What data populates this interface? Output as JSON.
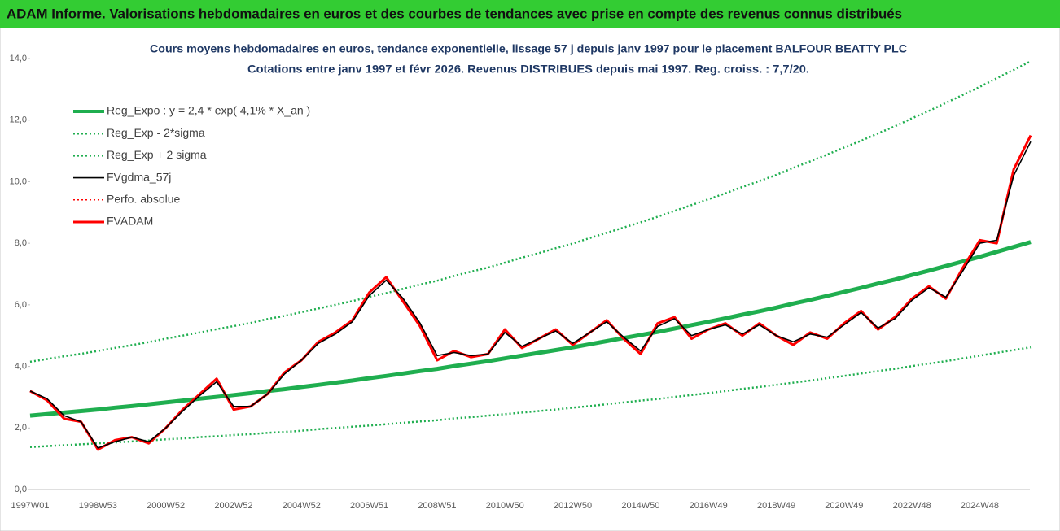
{
  "chart_data": {
    "type": "line",
    "header": "ADAM Informe. Valorisations hebdomadaires en euros et des courbes de tendances avec prise en compte des revenus connus distribués",
    "title": "Cours moyens hebdomadaires en euros, tendance exponentielle, lissage 57 j depuis janv 1997 pour le placement BALFOUR BEATTY PLC",
    "subtitle": "Cotations entre janv 1997 et févr 2026. Revenus DISTRIBUES depuis mai 1997. Reg. croiss. : 7,7/20.",
    "categories": [
      "1997W01",
      null,
      null,
      null,
      "1998W53",
      null,
      null,
      null,
      "2000W52",
      null,
      null,
      null,
      "2002W52",
      null,
      null,
      null,
      "2004W52",
      null,
      null,
      null,
      "2006W51",
      null,
      null,
      null,
      "2008W51",
      null,
      null,
      null,
      "2010W50",
      null,
      null,
      null,
      "2012W50",
      null,
      null,
      null,
      "2014W50",
      null,
      null,
      null,
      "2016W49",
      null,
      null,
      null,
      "2018W49",
      null,
      null,
      null,
      "2020W49",
      null,
      null,
      null,
      "2022W48",
      null,
      null,
      null,
      "2024W48",
      null,
      null,
      null
    ],
    "ylim": [
      0,
      14
    ],
    "yticks": [
      {
        "value": 0,
        "label": "0,0"
      },
      {
        "value": 2,
        "label": "2,0"
      },
      {
        "value": 4,
        "label": "4,0"
      },
      {
        "value": 6,
        "label": "6,0"
      },
      {
        "value": 8,
        "label": "8,0"
      },
      {
        "value": 10,
        "label": "10,0"
      },
      {
        "value": 12,
        "label": "12,0"
      },
      {
        "value": 14,
        "label": "14,0"
      }
    ],
    "grid": false,
    "legend": "upper left",
    "series": [
      {
        "name": "Reg_Expo : y = 2,4 * exp( 4,1% *  X_an )",
        "color": "#1fae4f",
        "line_style": "solid",
        "line_width": 5,
        "values": [
          2.4,
          2.45,
          2.5,
          2.55,
          2.6,
          2.66,
          2.71,
          2.77,
          2.83,
          2.89,
          2.95,
          3.01,
          3.07,
          3.13,
          3.2,
          3.26,
          3.33,
          3.4,
          3.47,
          3.54,
          3.62,
          3.69,
          3.77,
          3.85,
          3.92,
          4.01,
          4.09,
          4.17,
          4.26,
          4.35,
          4.44,
          4.53,
          4.62,
          4.72,
          4.82,
          4.92,
          5.02,
          5.12,
          5.23,
          5.34,
          5.45,
          5.56,
          5.68,
          5.79,
          5.91,
          6.04,
          6.16,
          6.29,
          6.42,
          6.55,
          6.69,
          6.82,
          6.97,
          7.11,
          7.26,
          7.41,
          7.56,
          7.72,
          7.88,
          8.04
        ]
      },
      {
        "name": "Reg_Exp - 2*sigma",
        "color": "#1fae4f",
        "line_style": "dotted",
        "line_width": 2.5,
        "values": [
          1.38,
          1.41,
          1.44,
          1.47,
          1.5,
          1.53,
          1.56,
          1.59,
          1.63,
          1.66,
          1.7,
          1.73,
          1.77,
          1.8,
          1.84,
          1.87,
          1.91,
          1.96,
          2.0,
          2.04,
          2.08,
          2.12,
          2.17,
          2.21,
          2.25,
          2.31,
          2.35,
          2.4,
          2.45,
          2.5,
          2.55,
          2.6,
          2.66,
          2.71,
          2.77,
          2.83,
          2.89,
          2.94,
          3.01,
          3.07,
          3.13,
          3.2,
          3.27,
          3.33,
          3.4,
          3.47,
          3.54,
          3.62,
          3.69,
          3.77,
          3.85,
          3.92,
          4.01,
          4.09,
          4.17,
          4.26,
          4.35,
          4.44,
          4.53,
          4.62
        ]
      },
      {
        "name": "Reg_Exp + 2 sigma",
        "color": "#1fae4f",
        "line_style": "dotted",
        "line_width": 2.5,
        "values": [
          4.15,
          4.24,
          4.33,
          4.41,
          4.5,
          4.6,
          4.69,
          4.79,
          4.9,
          5.0,
          5.1,
          5.21,
          5.31,
          5.41,
          5.54,
          5.64,
          5.76,
          5.88,
          6.0,
          6.12,
          6.26,
          6.38,
          6.52,
          6.66,
          6.78,
          6.94,
          7.08,
          7.21,
          7.37,
          7.53,
          7.68,
          7.84,
          7.99,
          8.17,
          8.34,
          8.51,
          8.68,
          8.86,
          9.05,
          9.24,
          9.43,
          9.62,
          9.83,
          10.02,
          10.22,
          10.45,
          10.66,
          10.88,
          11.11,
          11.33,
          11.57,
          11.8,
          12.06,
          12.3,
          12.56,
          12.82,
          13.08,
          13.36,
          13.63,
          13.91
        ]
      },
      {
        "name": "FVgdma_57j",
        "color": "#000000",
        "line_style": "solid",
        "line_width": 1.6,
        "values": [
          3.2,
          2.95,
          2.4,
          2.2,
          1.35,
          1.55,
          1.7,
          1.55,
          2.0,
          2.55,
          3.05,
          3.5,
          2.7,
          2.7,
          3.1,
          3.75,
          4.2,
          4.75,
          5.05,
          5.45,
          6.3,
          6.8,
          6.2,
          5.4,
          4.35,
          4.45,
          4.35,
          4.4,
          5.1,
          4.65,
          4.9,
          5.15,
          4.75,
          5.1,
          5.45,
          4.95,
          4.5,
          5.3,
          5.55,
          5.0,
          5.2,
          5.35,
          5.05,
          5.35,
          5.0,
          4.8,
          5.05,
          4.95,
          5.35,
          5.75,
          5.25,
          5.55,
          6.15,
          6.55,
          6.25,
          7.1,
          8.0,
          8.1,
          10.2,
          11.3
        ]
      },
      {
        "name": "Perfo. absolue",
        "color": "#ff0000",
        "line_style": "dotted",
        "line_width": 1.5,
        "values": [
          3.2,
          2.9,
          2.3,
          2.2,
          1.3,
          1.6,
          1.7,
          1.5,
          2.0,
          2.6,
          3.1,
          3.6,
          2.6,
          2.7,
          3.1,
          3.8,
          4.2,
          4.8,
          5.1,
          5.5,
          6.4,
          6.9,
          6.1,
          5.3,
          4.2,
          4.5,
          4.3,
          4.4,
          5.2,
          4.6,
          4.9,
          5.2,
          4.7,
          5.1,
          5.5,
          4.9,
          4.4,
          5.4,
          5.6,
          4.9,
          5.2,
          5.4,
          5.0,
          5.4,
          5.0,
          4.7,
          5.1,
          4.9,
          5.4,
          5.8,
          5.2,
          5.6,
          6.2,
          6.6,
          6.2,
          7.2,
          8.1,
          8.0,
          10.4,
          11.5
        ]
      },
      {
        "name": "FVADAM",
        "color": "#ff0000",
        "line_style": "solid",
        "line_width": 3,
        "values": [
          3.2,
          2.9,
          2.3,
          2.2,
          1.3,
          1.6,
          1.7,
          1.5,
          2.0,
          2.6,
          3.1,
          3.6,
          2.6,
          2.7,
          3.1,
          3.8,
          4.2,
          4.8,
          5.1,
          5.5,
          6.4,
          6.9,
          6.1,
          5.3,
          4.2,
          4.5,
          4.3,
          4.4,
          5.2,
          4.6,
          4.9,
          5.2,
          4.7,
          5.1,
          5.5,
          4.9,
          4.4,
          5.4,
          5.6,
          4.9,
          5.2,
          5.4,
          5.0,
          5.4,
          5.0,
          4.7,
          5.1,
          4.9,
          5.4,
          5.8,
          5.2,
          5.6,
          6.2,
          6.6,
          6.2,
          7.2,
          8.1,
          8.0,
          10.4,
          11.5
        ]
      }
    ]
  }
}
